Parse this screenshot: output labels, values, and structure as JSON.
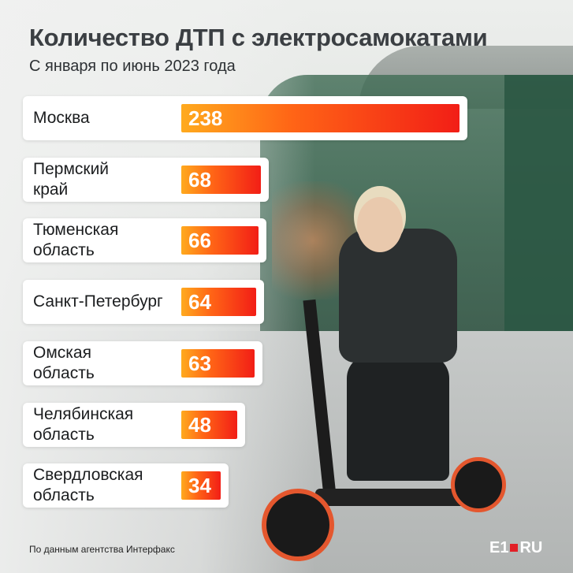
{
  "title": "Количество ДТП с электросамокатами",
  "subtitle": "С января по июнь 2023 года",
  "source": "По данным агентства Интерфакс",
  "logo": {
    "left": "E1",
    "right": "RU"
  },
  "colors": {
    "bar_start": "#ffaa1e",
    "bar_end": "#f21e16",
    "title": "#3b3f43"
  },
  "chart_data": {
    "type": "bar",
    "orientation": "horizontal",
    "title": "Количество ДТП с электросамокатами",
    "subtitle": "С января по июнь 2023 года",
    "categories": [
      "Москва",
      "Пермский\nкрай",
      "Тюменская\nобласть",
      "Санкт-Петербург",
      "Омская\nобласть",
      "Челябинская\nобласть",
      "Свердловская\nобласть"
    ],
    "values": [
      238,
      68,
      66,
      64,
      63,
      48,
      34
    ],
    "grid": false,
    "legend": "none"
  }
}
